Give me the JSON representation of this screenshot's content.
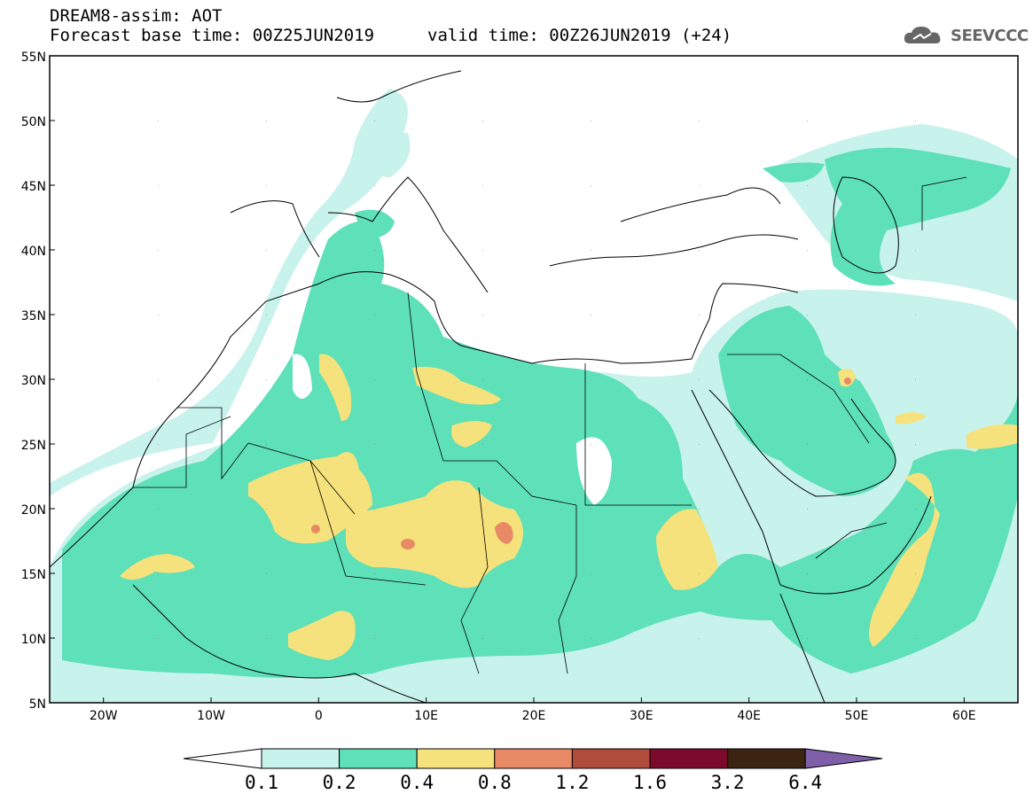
{
  "header": {
    "line1": "DREAM8-assim: AOT",
    "line2": "Forecast base time: 00Z25JUN2019",
    "line3": "valid time: 00Z26JUN2019 (+24)"
  },
  "logo": {
    "text": "SEEVCCC",
    "icon": "cloud-icon"
  },
  "map": {
    "lat_labels": [
      "55N",
      "50N",
      "45N",
      "40N",
      "35N",
      "30N",
      "25N",
      "20N",
      "15N",
      "10N",
      "5N"
    ],
    "lon_labels": [
      "20W",
      "10W",
      "0",
      "10E",
      "20E",
      "30E",
      "40E",
      "50E",
      "60E"
    ],
    "lat_range": [
      5,
      55
    ],
    "lon_range": [
      -25,
      65
    ]
  },
  "colorbar": {
    "levels": [
      "0.1",
      "0.2",
      "0.4",
      "0.8",
      "1.2",
      "1.6",
      "3.2",
      "6.4"
    ],
    "colors": [
      "#c8f2ec",
      "#5ee0b8",
      "#f6e27c",
      "#e88a66",
      "#b04c3c",
      "#7c0a2c",
      "#3c2412",
      "#7f5fa8"
    ],
    "under_color": "#ffffff"
  }
}
